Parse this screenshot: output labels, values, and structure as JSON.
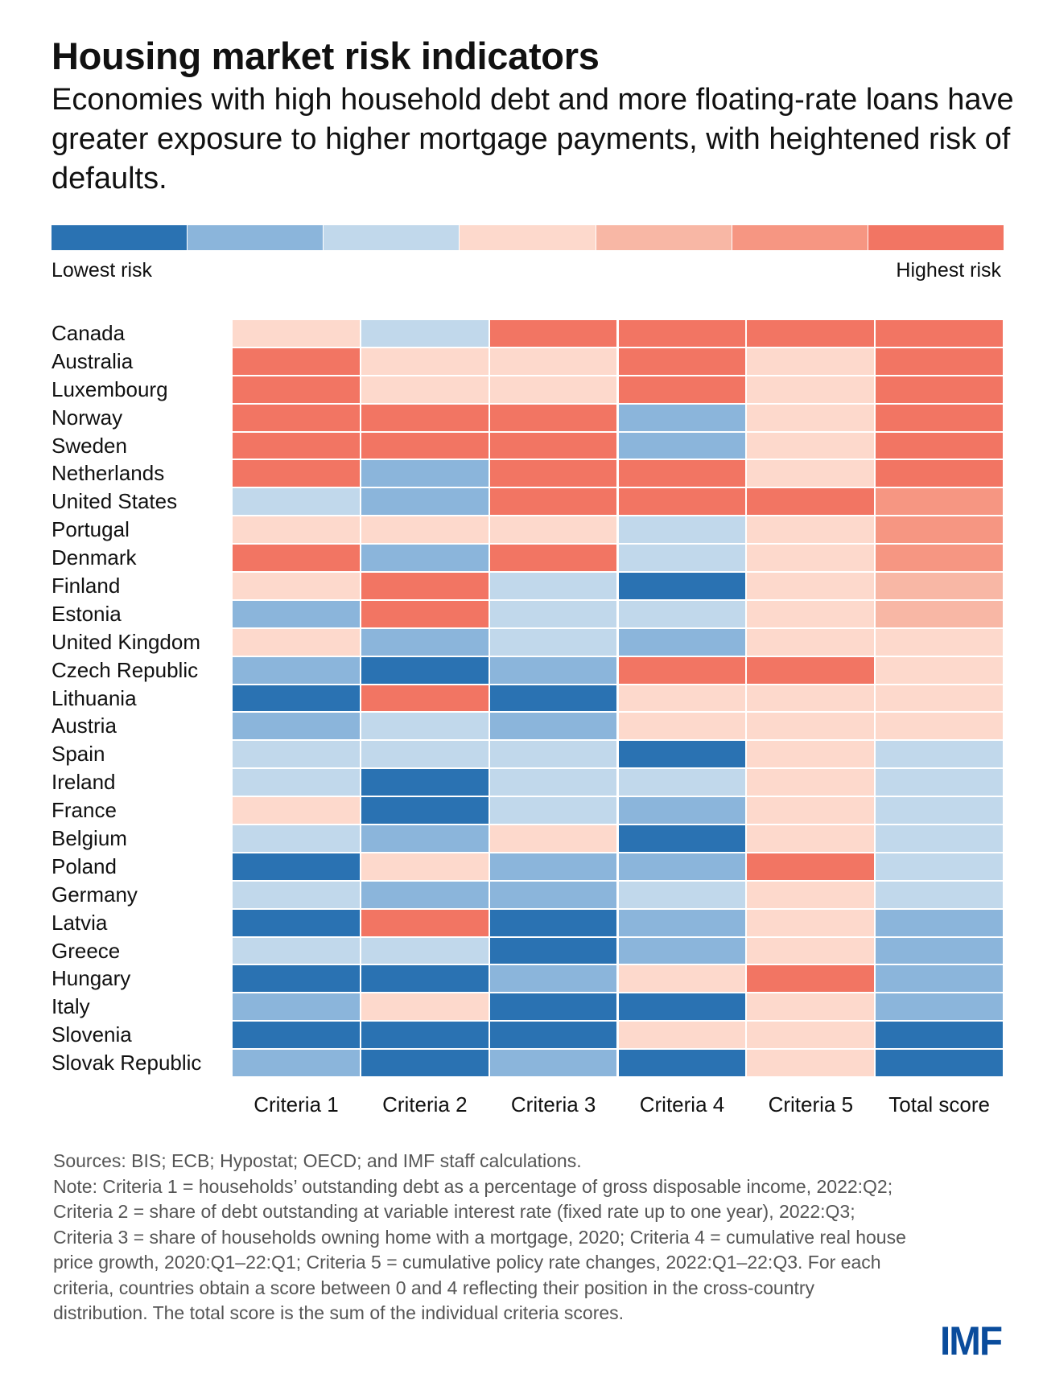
{
  "header": {
    "title": "Housing market risk indicators",
    "subtitle": "Economies with high household debt and more floating-rate loans have greater exposure to higher mortgage payments, with heightened risk of defaults."
  },
  "legend": {
    "low_label": "Lowest risk",
    "high_label": "Highest risk",
    "colors": [
      "#2a72b2",
      "#8bb5db",
      "#c1d8eb",
      "#fdd9cc",
      "#f8b7a5",
      "#f69682",
      "#f27563"
    ]
  },
  "chart_data": {
    "type": "heatmap",
    "title": "Housing market risk indicators",
    "value_meaning": "risk color bin, 0 = lowest risk ... 6 = highest risk (criteria use bins 0,1,2,3,6 for scores 0-4)",
    "columns": [
      "Criteria 1",
      "Criteria 2",
      "Criteria 3",
      "Criteria 4",
      "Criteria 5",
      "Total score"
    ],
    "rows": [
      "Canada",
      "Australia",
      "Luxembourg",
      "Norway",
      "Sweden",
      "Netherlands",
      "United States",
      "Portugal",
      "Denmark",
      "Finland",
      "Estonia",
      "United Kingdom",
      "Czech Republic",
      "Lithuania",
      "Austria",
      "Spain",
      "Ireland",
      "France",
      "Belgium",
      "Poland",
      "Germany",
      "Latvia",
      "Greece",
      "Hungary",
      "Italy",
      "Slovenia",
      "Slovak Republic"
    ],
    "values": [
      [
        3,
        2,
        6,
        6,
        6,
        6
      ],
      [
        6,
        3,
        3,
        6,
        3,
        6
      ],
      [
        6,
        3,
        3,
        6,
        3,
        6
      ],
      [
        6,
        6,
        6,
        1,
        3,
        6
      ],
      [
        6,
        6,
        6,
        1,
        3,
        6
      ],
      [
        6,
        1,
        6,
        6,
        3,
        6
      ],
      [
        2,
        1,
        6,
        6,
        6,
        5
      ],
      [
        3,
        3,
        3,
        2,
        3,
        5
      ],
      [
        6,
        1,
        6,
        2,
        3,
        5
      ],
      [
        3,
        6,
        2,
        0,
        3,
        4
      ],
      [
        1,
        6,
        2,
        2,
        3,
        4
      ],
      [
        3,
        1,
        2,
        1,
        3,
        3
      ],
      [
        1,
        0,
        1,
        6,
        6,
        3
      ],
      [
        0,
        6,
        0,
        3,
        3,
        3
      ],
      [
        1,
        2,
        1,
        3,
        3,
        3
      ],
      [
        2,
        2,
        2,
        0,
        3,
        2
      ],
      [
        2,
        0,
        2,
        2,
        3,
        2
      ],
      [
        3,
        0,
        2,
        1,
        3,
        2
      ],
      [
        2,
        1,
        3,
        0,
        3,
        2
      ],
      [
        0,
        3,
        1,
        1,
        6,
        2
      ],
      [
        2,
        1,
        1,
        2,
        3,
        2
      ],
      [
        0,
        6,
        0,
        1,
        3,
        1
      ],
      [
        2,
        2,
        0,
        1,
        3,
        1
      ],
      [
        0,
        0,
        1,
        3,
        6,
        1
      ],
      [
        1,
        3,
        0,
        0,
        3,
        1
      ],
      [
        0,
        0,
        0,
        3,
        3,
        0
      ],
      [
        1,
        0,
        1,
        0,
        3,
        0
      ]
    ]
  },
  "footer": {
    "sources": "Sources: BIS; ECB; Hypostat; OECD; and IMF staff calculations.",
    "note": "Note: Criteria 1 = households’ outstanding debt as a percentage of gross disposable income, 2022:Q2; Criteria 2 = share of debt outstanding at variable interest rate (fixed rate up to one year), 2022:Q3; Criteria 3 = share of households owning home with a mortgage, 2020; Criteria 4 = cumulative real house price growth, 2020:Q1–22:Q1; Criteria 5 = cumulative policy rate changes, 2022:Q1–22:Q3. For each criteria, countries obtain a score between 0 and 4 reflecting their position in the cross-country distribution. The total score is the sum of the individual criteria scores.",
    "logo": "IMF"
  }
}
